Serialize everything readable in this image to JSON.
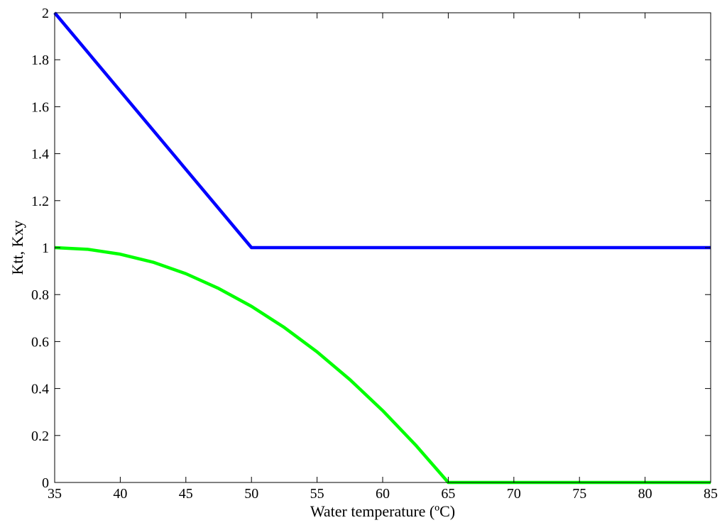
{
  "chart_data": {
    "type": "line",
    "title": "",
    "xlabel": "Water temperature (ºC)",
    "ylabel": "Ktt, Kxy",
    "xlim": [
      35,
      85
    ],
    "ylim": [
      0,
      2
    ],
    "x_ticks": [
      35,
      40,
      45,
      50,
      55,
      60,
      65,
      70,
      75,
      80,
      85
    ],
    "y_ticks": [
      0,
      0.2,
      0.4,
      0.6,
      0.8,
      1,
      1.2,
      1.4,
      1.6,
      1.8,
      2
    ],
    "grid": false,
    "legend": "none",
    "series": [
      {
        "color": "#0000ff",
        "x": [
          35,
          50,
          85
        ],
        "y": [
          2,
          1,
          1
        ]
      },
      {
        "color": "#00ff00",
        "x": [
          35,
          37.5,
          40,
          42.5,
          45,
          47.5,
          50,
          52.5,
          55,
          57.5,
          60,
          62.5,
          65,
          85
        ],
        "y": [
          1,
          0.993,
          0.972,
          0.938,
          0.889,
          0.826,
          0.75,
          0.66,
          0.556,
          0.438,
          0.306,
          0.16,
          0,
          0
        ]
      }
    ]
  }
}
